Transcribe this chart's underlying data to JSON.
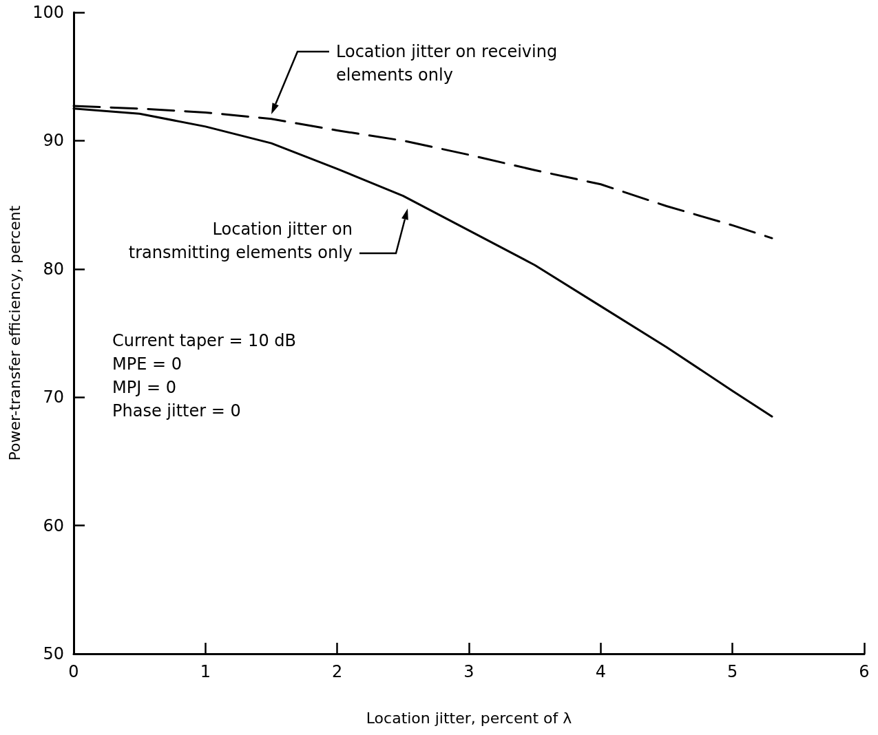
{
  "chart_data": {
    "type": "line",
    "xlabel": "Location jitter, percent of λ",
    "ylabel": "Power-transfer efficiency, percent",
    "xlim": [
      0,
      6
    ],
    "xticks": [
      0,
      1,
      2,
      3,
      4,
      5,
      6
    ],
    "ylim": [
      50,
      100
    ],
    "yticks": [
      50,
      60,
      70,
      80,
      90,
      100
    ],
    "grid": false,
    "marker": "none",
    "series": [
      {
        "color": "#000000",
        "line_style": "solid",
        "x": [
          0,
          0.5,
          1,
          1.5,
          2,
          2.5,
          3,
          3.5,
          4,
          4.5,
          5,
          5.3
        ],
        "values": [
          92.5,
          92.1,
          91.1,
          89.8,
          87.8,
          85.7,
          83.0,
          80.3,
          77.1,
          73.9,
          70.5,
          68.5
        ]
      },
      {
        "color": "#000000",
        "line_style": "dashed",
        "x": [
          0,
          0.5,
          1,
          1.5,
          2,
          2.5,
          3,
          3.5,
          4,
          4.5,
          5,
          5.3
        ],
        "values": [
          92.7,
          92.5,
          92.2,
          91.7,
          90.8,
          90.0,
          88.9,
          87.7,
          86.6,
          84.9,
          83.4,
          82.4
        ]
      }
    ],
    "annotations": [
      "Location jitter on receiving\nelements only",
      "Location jitter on\ntransmitting elements only",
      "Current taper = 10 dB",
      "MPE = 0",
      "MPJ = 0",
      "Phase jitter = 0"
    ]
  }
}
